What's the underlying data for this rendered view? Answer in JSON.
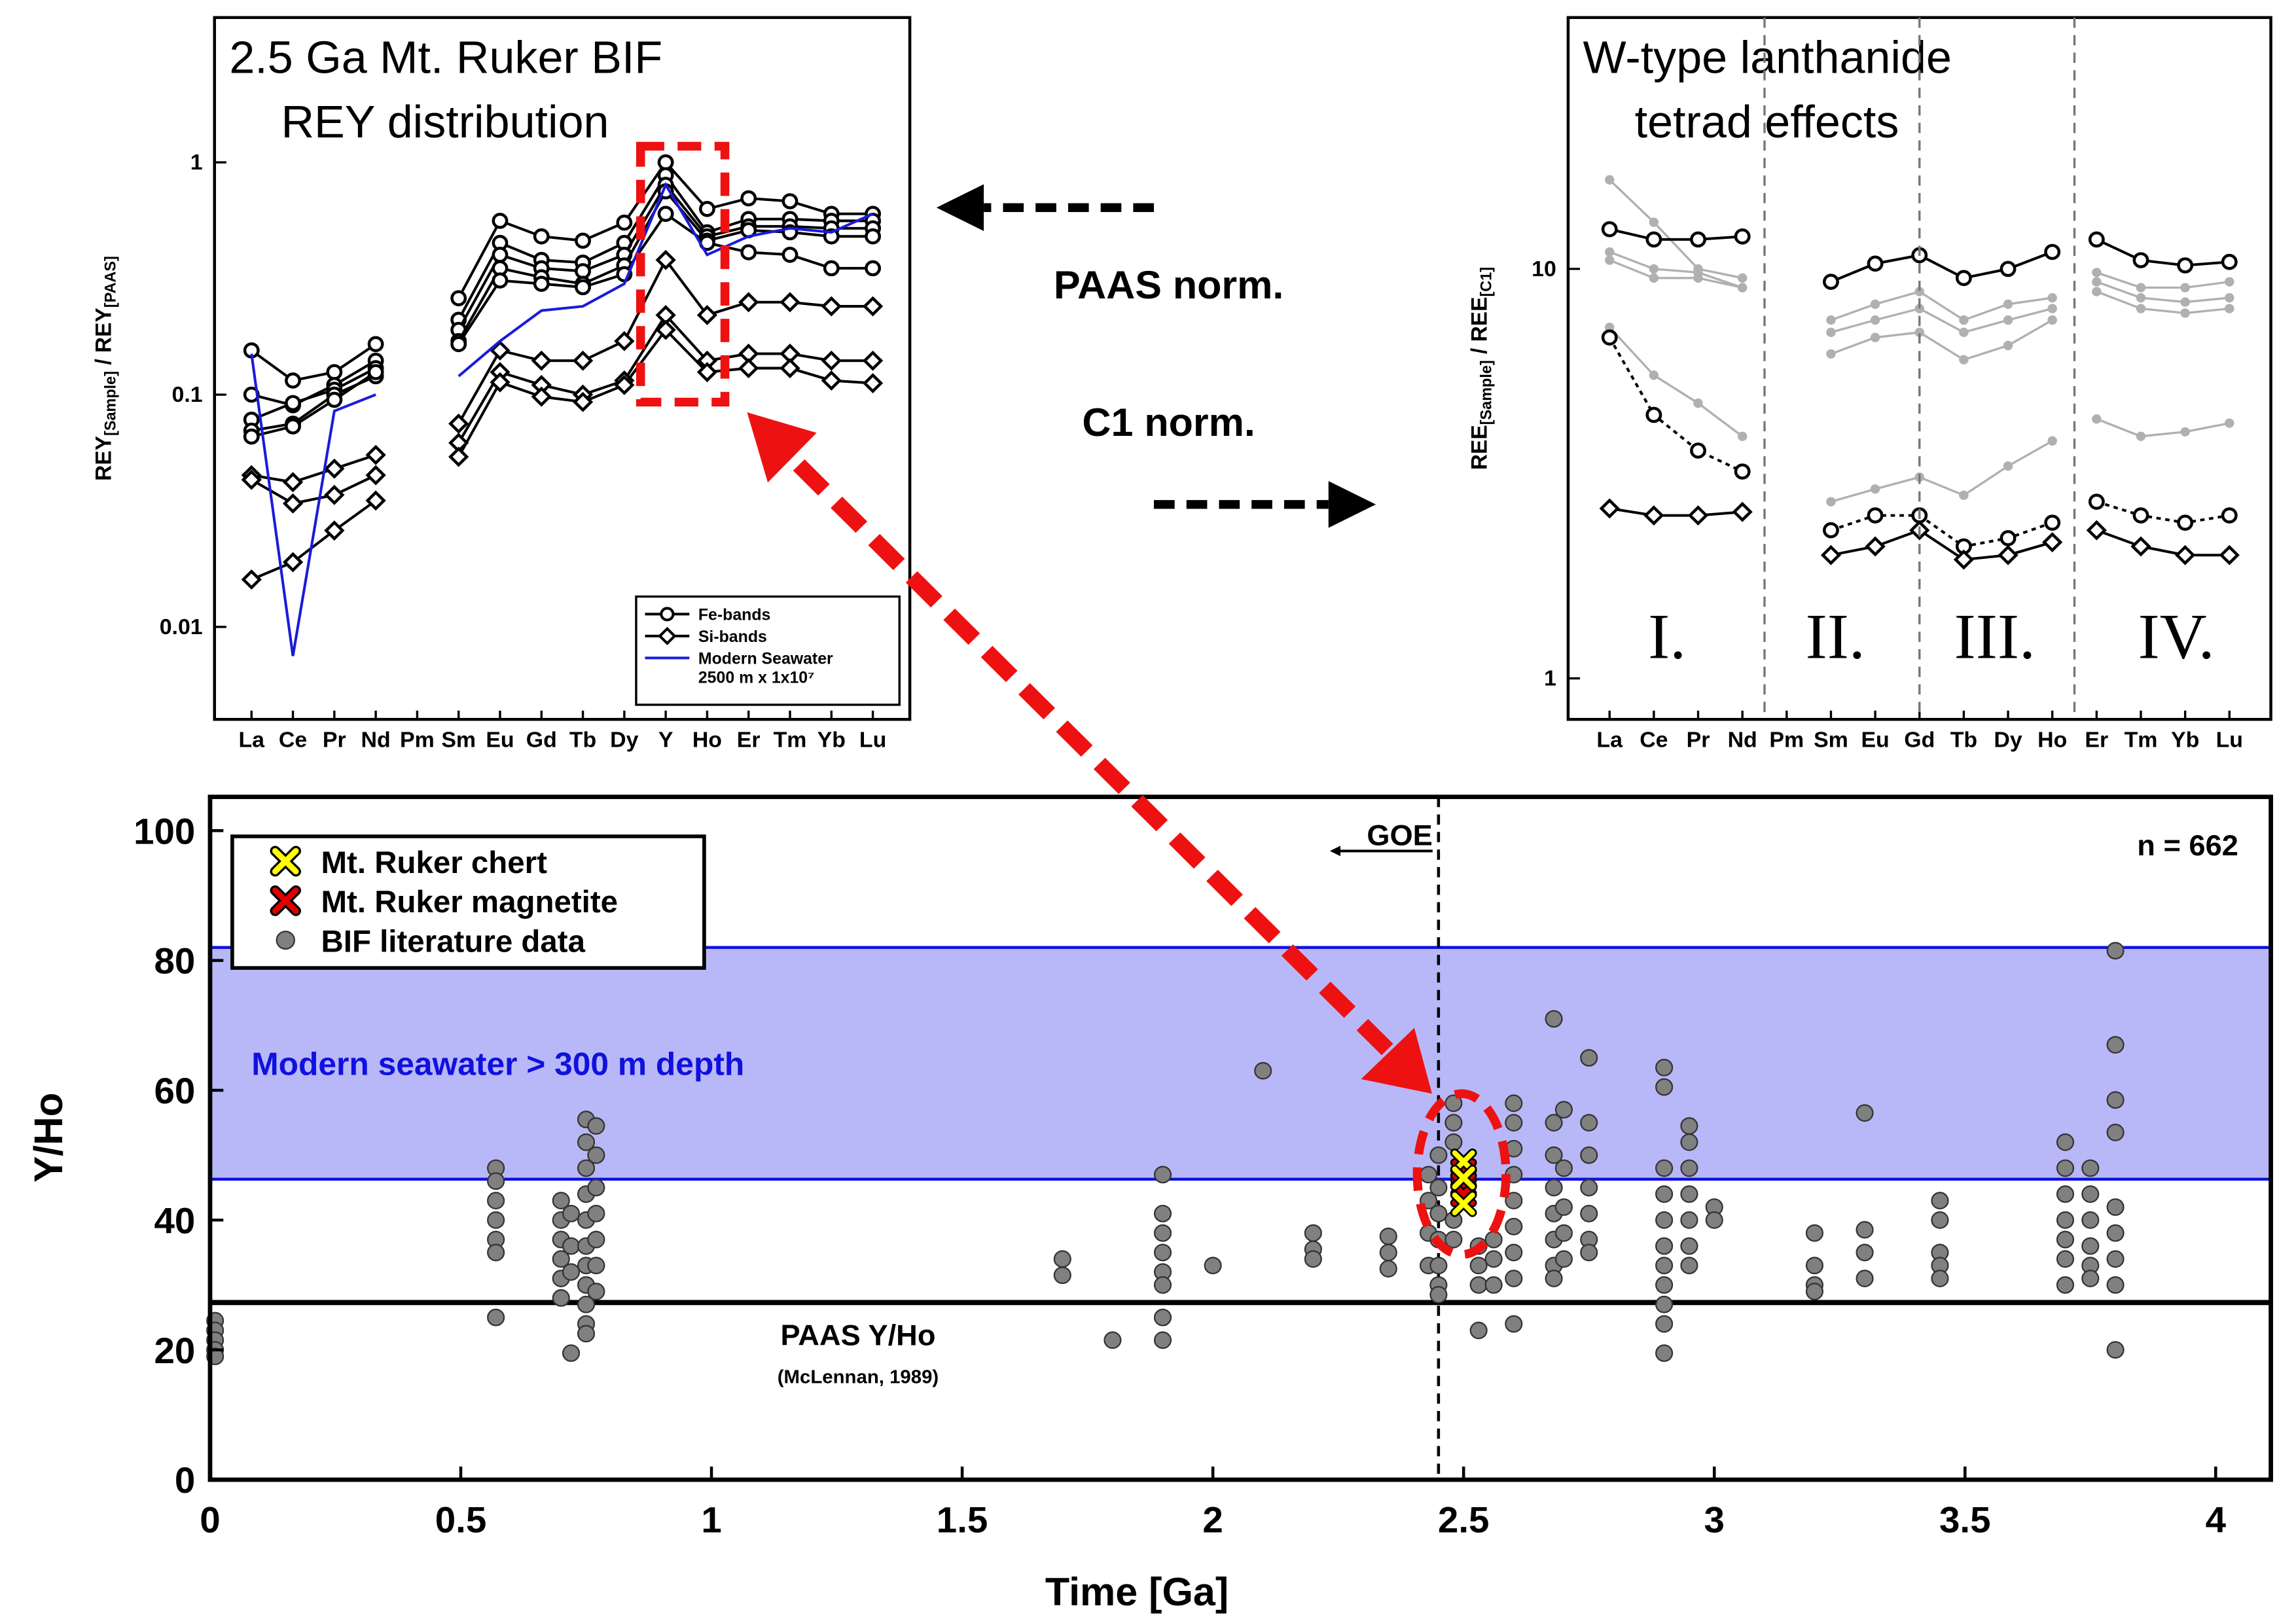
{
  "chart_data": [
    {
      "type": "line",
      "title": [
        "2.5 Ga Mt. Ruker BIF",
        "REY distribution"
      ],
      "ylabel": [
        "REY",
        "[Sample]",
        " / REY",
        "[PAAS]"
      ],
      "categories": [
        "La",
        "Ce",
        "Pr",
        "Nd",
        "Pm",
        "Sm",
        "Eu",
        "Gd",
        "Tb",
        "Dy",
        "Y",
        "Ho",
        "Er",
        "Tm",
        "Yb",
        "Lu"
      ],
      "log_y": true,
      "ylim": [
        0.004,
        4.2
      ],
      "yticks": [
        0.01,
        0.1,
        1
      ],
      "legend": "lower right",
      "groups": [
        {
          "name": "Fe-bands",
          "marker": "circle",
          "color": "#000000",
          "samples": [
            [
              0.155,
              0.115,
              0.125,
              0.165,
              null,
              0.26,
              0.56,
              0.48,
              0.46,
              0.55,
              1.0,
              0.63,
              0.7,
              0.68,
              0.6,
              0.6
            ],
            [
              0.1,
              0.09,
              0.11,
              0.14,
              null,
              0.21,
              0.45,
              0.38,
              0.37,
              0.45,
              0.88,
              0.5,
              0.57,
              0.57,
              0.56,
              0.56
            ],
            [
              0.078,
              0.092,
              0.105,
              0.13,
              null,
              0.19,
              0.4,
              0.35,
              0.34,
              0.4,
              0.8,
              0.48,
              0.53,
              0.53,
              0.52,
              0.52
            ],
            [
              0.07,
              0.075,
              0.1,
              0.12,
              null,
              0.17,
              0.35,
              0.32,
              0.3,
              0.36,
              0.75,
              0.46,
              0.51,
              0.5,
              0.48,
              0.48
            ],
            [
              0.066,
              0.073,
              0.095,
              0.125,
              null,
              0.165,
              0.31,
              0.3,
              0.29,
              0.33,
              0.6,
              0.45,
              0.41,
              0.4,
              0.35,
              0.35
            ]
          ]
        },
        {
          "name": "Si-bands",
          "marker": "diamond",
          "color": "#000000",
          "samples": [
            [
              0.045,
              0.042,
              0.048,
              0.055,
              null,
              0.075,
              0.155,
              0.14,
              0.14,
              0.17,
              0.38,
              0.22,
              0.25,
              0.25,
              0.24,
              0.24
            ],
            [
              0.043,
              0.034,
              0.037,
              0.045,
              null,
              0.062,
              0.125,
              0.11,
              0.1,
              0.115,
              0.22,
              0.14,
              0.15,
              0.15,
              0.14,
              0.14
            ],
            [
              0.016,
              0.019,
              0.026,
              0.035,
              null,
              0.054,
              0.113,
              0.098,
              0.093,
              0.11,
              0.19,
              0.125,
              0.13,
              0.13,
              0.115,
              0.112
            ]
          ]
        },
        {
          "name": [
            "Modern Seawater",
            "2500 m x 1x10⁷"
          ],
          "marker": "none",
          "color": "#1a1adb",
          "samples": [
            [
              0.15,
              0.0075,
              0.085,
              0.1,
              null,
              0.12,
              0.17,
              0.23,
              0.24,
              0.3,
              0.8,
              0.4,
              0.48,
              0.52,
              0.5,
              0.6
            ]
          ]
        }
      ]
    },
    {
      "type": "tetrad",
      "title": [
        "W-type lanthanide",
        "tetrad effects"
      ],
      "ylabel": [
        "REE",
        "[Sample]",
        " / REE",
        "[C1]"
      ],
      "categories": [
        "La",
        "Ce",
        "Pr",
        "Nd",
        "Pm",
        "Sm",
        "Eu",
        "Gd",
        "Tb",
        "Dy",
        "Ho",
        "Er",
        "Tm",
        "Yb",
        "Lu"
      ],
      "log_y": true,
      "ylim": [
        0.794,
        41.1
      ],
      "yticks": [
        1,
        10
      ],
      "tetrad_labels": [
        "I.",
        "II.",
        "III.",
        "IV."
      ],
      "groups": [
        {
          "marker": "dot",
          "color": "#b0b0b0",
          "line": "solid",
          "samples": [
            [
              16.5,
              13,
              10,
              9.5,
              null,
              7.5,
              8.2,
              8.8,
              7.5,
              8.2,
              8.5,
              9.8,
              9.0,
              9.0,
              9.3
            ],
            [
              11,
              10,
              9.8,
              9.0,
              null,
              7.0,
              7.5,
              8.0,
              7.0,
              7.5,
              8.0,
              9.3,
              8.5,
              8.3,
              8.5
            ],
            [
              10.5,
              9.5,
              9.5,
              9.0,
              null,
              6.2,
              6.8,
              7.0,
              6.0,
              6.5,
              7.5,
              8.8,
              8.0,
              7.8,
              8.0
            ],
            [
              7.2,
              5.5,
              4.7,
              3.9,
              null,
              2.7,
              2.9,
              3.1,
              2.8,
              3.3,
              3.8,
              4.3,
              3.9,
              4.0,
              4.2
            ]
          ]
        },
        {
          "marker": "circle",
          "color": "#000000",
          "line": "solid",
          "samples": [
            [
              12.5,
              11.8,
              11.8,
              12.0,
              null,
              9.3,
              10.3,
              10.8,
              9.5,
              10.0,
              11.0,
              11.8,
              10.5,
              10.2,
              10.4
            ]
          ]
        },
        {
          "marker": "circle",
          "color": "#000000",
          "line": "dotted",
          "samples": [
            [
              6.8,
              4.4,
              3.6,
              3.2,
              null,
              2.3,
              2.5,
              2.5,
              2.1,
              2.2,
              2.4,
              2.7,
              2.5,
              2.4,
              2.5
            ]
          ]
        },
        {
          "marker": "diamond",
          "color": "#000000",
          "line": "solid",
          "samples": [
            [
              2.6,
              2.5,
              2.5,
              2.55,
              null,
              2.0,
              2.1,
              2.3,
              1.95,
              2.0,
              2.15,
              2.3,
              2.1,
              2.0,
              2.0
            ]
          ]
        }
      ]
    },
    {
      "type": "scatter",
      "xlabel": "Time [Ga]",
      "ylabel": "Y/Ho",
      "xlim": [
        0,
        4.11
      ],
      "ylim": [
        0,
        105.2
      ],
      "xticks": [
        0,
        0.5,
        1,
        1.5,
        2,
        2.5,
        3,
        3.5,
        4
      ],
      "yticks": [
        0,
        20,
        40,
        60,
        80,
        100
      ],
      "legend": "upper left",
      "n_label": "n = 662",
      "band": {
        "label": "Modern seawater > 300 m depth",
        "range": [
          46.3,
          82
        ],
        "color": "#b8b8f8",
        "edge": "#1010e0"
      },
      "hline": {
        "label": "PAAS Y/Ho",
        "note": "(McLennan, 1989)",
        "value": 27.3
      },
      "vline": {
        "label": "GOE",
        "value": 2.45
      },
      "series": [
        {
          "name": "Mt. Ruker chert",
          "color": "#ffff00",
          "marker": "x",
          "x": [
            2.5,
            2.5,
            2.5
          ],
          "values": [
            49,
            46.5,
            42.5
          ]
        },
        {
          "name": "Mt. Ruker magnetite",
          "color": "#e00000",
          "marker": "x",
          "x": [
            2.5,
            2.5,
            2.5
          ],
          "values": [
            47.5,
            45.5,
            44
          ]
        },
        {
          "name": "BIF literature data",
          "color": "#808080",
          "marker": "circle",
          "x": [
            0.01,
            0.01,
            0.01,
            0.01,
            0.01,
            0.57,
            0.57,
            0.57,
            0.57,
            0.57,
            0.57,
            0.57,
            0.7,
            0.7,
            0.7,
            0.7,
            0.7,
            0.7,
            0.72,
            0.72,
            0.72,
            0.72,
            0.75,
            0.75,
            0.75,
            0.75,
            0.75,
            0.75,
            0.75,
            0.75,
            0.75,
            0.75,
            0.75,
            0.77,
            0.77,
            0.77,
            0.77,
            0.77,
            0.77,
            0.77,
            1.7,
            1.7,
            1.8,
            1.9,
            1.9,
            1.9,
            1.9,
            1.9,
            1.9,
            1.9,
            1.9,
            2,
            2.1,
            2.2,
            2.2,
            2.2,
            2.35,
            2.35,
            2.35,
            2.43,
            2.43,
            2.43,
            2.43,
            2.45,
            2.45,
            2.45,
            2.45,
            2.45,
            2.45,
            2.45,
            2.48,
            2.48,
            2.48,
            2.48,
            2.48,
            2.53,
            2.53,
            2.53,
            2.53,
            2.56,
            2.56,
            2.56,
            2.6,
            2.6,
            2.6,
            2.6,
            2.6,
            2.6,
            2.6,
            2.6,
            2.6,
            2.68,
            2.68,
            2.68,
            2.68,
            2.68,
            2.68,
            2.68,
            2.68,
            2.7,
            2.7,
            2.7,
            2.7,
            2.7,
            2.75,
            2.75,
            2.75,
            2.75,
            2.75,
            2.75,
            2.75,
            2.9,
            2.9,
            2.9,
            2.9,
            2.9,
            2.9,
            2.9,
            2.9,
            2.9,
            2.9,
            2.9,
            2.95,
            2.95,
            2.95,
            2.95,
            2.95,
            2.95,
            2.95,
            3,
            3,
            3.2,
            3.2,
            3.2,
            3.2,
            3.3,
            3.3,
            3.3,
            3.3,
            3.45,
            3.45,
            3.45,
            3.45,
            3.45,
            3.7,
            3.7,
            3.7,
            3.7,
            3.7,
            3.7,
            3.7,
            3.75,
            3.75,
            3.75,
            3.75,
            3.75,
            3.75,
            3.8,
            3.8,
            3.8,
            3.8,
            3.8,
            3.8,
            3.8,
            3.8,
            3.8
          ],
          "values": [
            24.5,
            23,
            21.5,
            20,
            19,
            48,
            46,
            43,
            40,
            37,
            35,
            25,
            43,
            40,
            37,
            34,
            31,
            28,
            41,
            36,
            32,
            19.5,
            55.5,
            52,
            48,
            44,
            40,
            36,
            33,
            30,
            27,
            24,
            22.5,
            54.5,
            50,
            45,
            41,
            37,
            33,
            29,
            34,
            31.5,
            21.5,
            47,
            41,
            38,
            35,
            32,
            30,
            25,
            21.5,
            33,
            63,
            38,
            35.5,
            34,
            37.5,
            35,
            32.5,
            47,
            43,
            38,
            33,
            50,
            45,
            41,
            37,
            33,
            30,
            28.5,
            58,
            55,
            52,
            40,
            37,
            36,
            33,
            30,
            23,
            37,
            34,
            30,
            58,
            55,
            51,
            47,
            43,
            39,
            35,
            31,
            24,
            71,
            55,
            50,
            45,
            41,
            37,
            33,
            31,
            57,
            48,
            42,
            38,
            34,
            65,
            55,
            50,
            45,
            41,
            37,
            35,
            63.5,
            60.5,
            48,
            44,
            40,
            36,
            33,
            30,
            27,
            24,
            19.5,
            54.5,
            52,
            48,
            44,
            40,
            36,
            33,
            42,
            40,
            38,
            33,
            30,
            29,
            56.5,
            38.5,
            35,
            31,
            43,
            40,
            35,
            33,
            31,
            52,
            48,
            44,
            40,
            37,
            34,
            30,
            48,
            44,
            40,
            36,
            33,
            31,
            81.5,
            67,
            58.5,
            53.5,
            42,
            38,
            34,
            30,
            20
          ]
        }
      ]
    }
  ],
  "annotations": {
    "paas_norm": "PAAS norm.",
    "c1_norm": "C1 norm."
  }
}
